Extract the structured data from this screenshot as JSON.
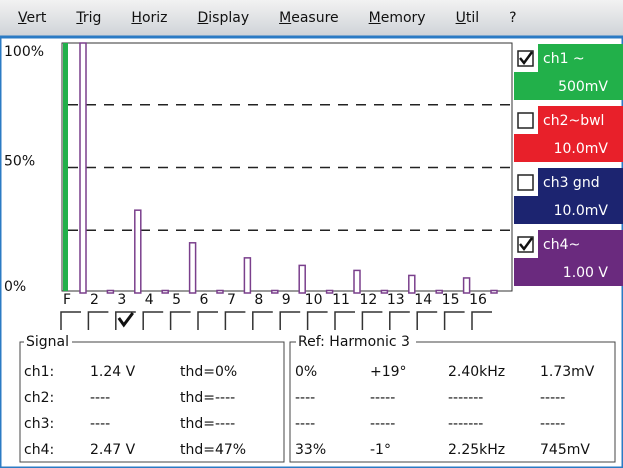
{
  "menu": [
    "Vert",
    "Trig",
    "Horiz",
    "Display",
    "Measure",
    "Memory",
    "Util",
    "?"
  ],
  "chart_data": {
    "type": "bar",
    "categories": [
      "F",
      "2",
      "3",
      "4",
      "5",
      "6",
      "7",
      "8",
      "9",
      "10",
      "11",
      "12",
      "13",
      "14",
      "15",
      "16"
    ],
    "values": [
      100,
      1,
      33,
      1,
      20,
      1,
      14,
      1,
      11,
      1,
      9,
      1,
      7,
      1,
      6,
      1
    ],
    "color": "#7a3f8c",
    "checked_category": 2,
    "ylim": [
      0,
      100
    ],
    "yticks": [
      {
        "value": 0,
        "label": "0%"
      },
      {
        "value": 50,
        "label": "50%"
      },
      {
        "value": 100,
        "label": "100%"
      }
    ],
    "grid_values": [
      25,
      50,
      75
    ]
  },
  "channels": [
    {
      "name": "ch1 ~",
      "scale": "500mV",
      "checked": true,
      "color": "#22b04a"
    },
    {
      "name": "ch2~bwl",
      "scale": "10.0mV",
      "checked": false,
      "color": "#e8202a"
    },
    {
      "name": "ch3 gnd",
      "scale": "10.0mV",
      "checked": false,
      "color": "#1c2470"
    },
    {
      "name": "ch4~",
      "scale": "1.00 V",
      "checked": true,
      "color": "#6a2a7e"
    }
  ],
  "signal": {
    "title": "Signal",
    "rows": [
      [
        "ch1:",
        "1.24 V",
        "thd=0%"
      ],
      [
        "ch2:",
        "----",
        "thd=----"
      ],
      [
        "ch3:",
        "----",
        "thd=----"
      ],
      [
        "ch4:",
        "2.47 V",
        "thd=47%"
      ]
    ]
  },
  "ref": {
    "title": "Ref: Harmonic 3",
    "rows": [
      [
        "0%",
        "+19°",
        "2.40kHz",
        "1.73mV"
      ],
      [
        "----",
        "-----",
        "-------",
        "-----"
      ],
      [
        "----",
        "-----",
        "-------",
        "-----"
      ],
      [
        "33%",
        "-1°",
        "2.25kHz",
        "745mV"
      ]
    ]
  }
}
